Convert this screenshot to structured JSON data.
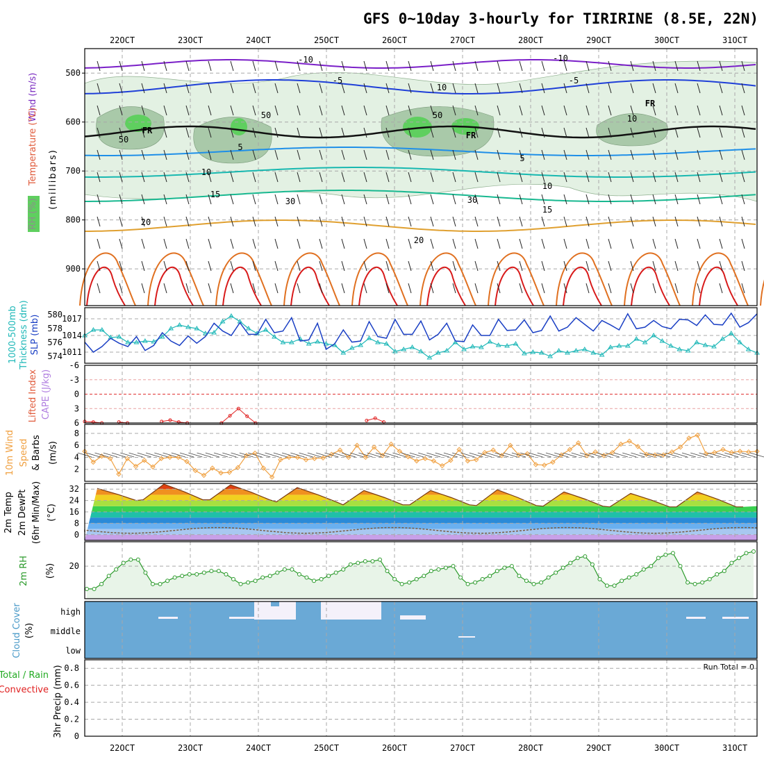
{
  "title": "GFS 0~10day 3-hourly for TIRIRINE (8.5E, 22N)",
  "x_labels": [
    "22OCT",
    "23OCT",
    "24OCT",
    "25OCT",
    "26OCT",
    "27OCT",
    "28OCT",
    "29OCT",
    "30OCT",
    "31OCT"
  ],
  "colors": {
    "grid": "#a8a8a8",
    "rh_fill_light": "#e3f1e3",
    "rh_fill_mid": "#a9c9a9",
    "rh_fill_high": "#5fcf5f",
    "cloud": "#6aa9d6",
    "slp": "#1a3fc4",
    "thickness": "#1fb8b8",
    "wind_speed": "#f0a040",
    "rh2m": "#2a9a2a",
    "precip_total": "#22aa22",
    "precip_conv": "#e02020"
  },
  "panels": {
    "upper_air": {
      "ylabels": [
        "Wind (m/s)",
        "Temperature (°C)",
        "RH (%)",
        "(millibars)"
      ],
      "ylim_mb": [
        450,
        975
      ],
      "yticks": [
        500,
        600,
        700,
        800,
        900
      ],
      "isotherm_labels": [
        "-10",
        "-5",
        "5",
        "10",
        "15",
        "20",
        "FR"
      ],
      "rh_labels": [
        "10",
        "30",
        "50"
      ]
    },
    "pressure": {
      "ylabels": [
        "1000-500mb",
        "Thickness (dm)",
        "SLP (mb)"
      ],
      "thickness_ticks": [
        574,
        576,
        578,
        580
      ],
      "slp_ticks": [
        1011,
        1014,
        1017
      ],
      "slp": [
        1012.8,
        1011.0,
        1012.0,
        1013.5,
        1012.6,
        1012.0,
        1013.8,
        1011.3,
        1012.2,
        1014.5,
        1013.0,
        1012.2,
        1013.9,
        1012.6,
        1013.8,
        1016.2,
        1014.8,
        1014.0,
        1016.3,
        1014.2,
        1014.2,
        1016.9,
        1014.5,
        1014.8,
        1017.2,
        1013.0,
        1013.2,
        1016.2,
        1011.5,
        1012.5,
        1015.0,
        1012.8,
        1013.0,
        1016.5,
        1013.8,
        1013.5,
        1016.9,
        1014.2,
        1014.2,
        1016.6,
        1013.2,
        1014.2,
        1016.2,
        1013.0,
        1012.9,
        1015.9,
        1014.0,
        1014.0,
        1016.9,
        1014.9,
        1015.0,
        1016.8,
        1014.5,
        1014.9,
        1017.5,
        1014.8,
        1015.5,
        1017.2,
        1016.0,
        1014.8,
        1016.7,
        1015.9,
        1015.0,
        1017.9,
        1015.2,
        1015.5,
        1016.7,
        1015.6,
        1015.2,
        1016.9,
        1016.8,
        1015.8,
        1017.7,
        1016.0,
        1015.9,
        1018.0,
        1015.5,
        1016.3,
        1017.9
      ],
      "thickness": [
        577.0,
        577.8,
        577.8,
        576.7,
        576.8,
        576.0,
        576.0,
        576.2,
        576.1,
        576.8,
        578.0,
        578.5,
        578.2,
        578.0,
        577.3,
        577.4,
        579.0,
        579.8,
        579.0,
        578.0,
        577.3,
        577.8,
        576.8,
        576.0,
        576.0,
        576.5,
        575.8,
        576.1,
        575.8,
        575.6,
        574.5,
        575.2,
        575.6,
        576.6,
        576.0,
        575.8,
        574.7,
        575.0,
        575.3,
        574.7,
        573.8,
        574.5,
        574.8,
        576.0,
        575.0,
        575.4,
        575.3,
        576.1,
        575.6,
        575.5,
        575.8,
        574.4,
        574.6,
        574.5,
        574.0,
        574.8,
        574.5,
        574.8,
        575.0,
        574.5,
        574.2,
        575.3,
        575.5,
        575.5,
        576.5,
        576.0,
        577.0,
        576.2,
        575.5,
        575.0,
        574.8,
        576.0,
        575.6,
        575.4,
        576.5,
        577.3,
        576.0,
        575.0,
        574.5
      ]
    },
    "stability": {
      "ylabels": [
        "Lifted Index",
        "CAPE (J/kg)"
      ],
      "li_ticks": [
        "-6",
        "-3",
        "0",
        "3",
        "6"
      ],
      "li_points": [
        [
          0,
          5.7
        ],
        [
          1,
          5.8
        ],
        [
          2,
          6
        ],
        [
          4,
          5.8
        ],
        [
          5,
          6
        ],
        [
          9,
          5.7
        ],
        [
          10,
          5.4
        ],
        [
          11,
          5.8
        ],
        [
          12,
          6
        ],
        [
          16,
          6
        ],
        [
          17,
          4.5
        ],
        [
          18,
          3.0
        ],
        [
          19,
          4.6
        ],
        [
          20,
          6
        ],
        [
          33,
          5.5
        ],
        [
          34,
          5.0
        ],
        [
          35,
          5.8
        ]
      ]
    },
    "wind10m": {
      "ylabels": [
        "10m Wind",
        "Speed",
        "& Barbs",
        "(m/s)"
      ],
      "yticks": [
        2,
        4,
        6,
        8
      ],
      "speed": [
        5.0,
        3.2,
        4.2,
        3.8,
        1.2,
        3.8,
        2.5,
        3.5,
        2.4,
        3.8,
        4.0,
        4.0,
        3.3,
        1.8,
        1.0,
        2.2,
        1.4,
        1.5,
        2.3,
        4.3,
        4.7,
        2.2,
        0.7,
        3.6,
        4.0,
        4.0,
        3.6,
        3.8,
        3.9,
        4.5,
        5.2,
        4.0,
        6.0,
        4.0,
        5.7,
        4.3,
        6.2,
        5.0,
        4.1,
        3.4,
        3.8,
        3.4,
        2.6,
        3.5,
        5.3,
        3.4,
        3.6,
        4.8,
        5.2,
        4.3,
        6.0,
        4.4,
        4.6,
        2.8,
        2.7,
        3.2,
        4.4,
        5.3,
        6.4,
        4.3,
        4.9,
        4.3,
        4.8,
        6.2,
        6.7,
        5.8,
        4.5,
        4.4,
        4.4,
        4.9,
        5.7,
        7.2,
        7.7,
        4.6,
        4.8,
        5.3,
        4.8,
        5.0,
        4.9,
        5.0
      ]
    },
    "temp2m": {
      "ylabels": [
        "2m Temp",
        "2m DewPt",
        "(6hr Min/Max)",
        "(°C)"
      ],
      "yticks": [
        0,
        8,
        16,
        24,
        32
      ],
      "daily_max": [
        32.5,
        35.5,
        35.0,
        33.0,
        31.0,
        31.0,
        31.5,
        30.0,
        29.0,
        30.0,
        29.5
      ],
      "daily_min": [
        24.0,
        24.5,
        24.5,
        23.0,
        21.0,
        21.0,
        20.5,
        20.0,
        19.5,
        19.5,
        19.5
      ],
      "dewpoint_range": [
        1,
        5
      ]
    },
    "rh2m": {
      "ylabels": [
        "2m RH",
        "(%)"
      ],
      "yticks": [
        20
      ],
      "values": [
        6,
        6,
        9,
        14,
        18,
        22,
        24,
        24,
        16,
        9,
        9,
        11,
        13,
        14,
        15,
        15,
        16,
        17,
        17,
        15,
        12,
        9,
        10,
        11,
        13,
        14,
        16,
        18,
        18,
        15,
        13,
        11,
        12,
        14,
        16,
        18,
        21,
        22,
        23,
        23,
        24,
        17,
        12,
        9,
        10,
        12,
        14,
        17,
        18,
        19,
        20,
        13,
        9,
        10,
        12,
        14,
        17,
        19,
        20,
        14,
        11,
        9,
        10,
        13,
        16,
        19,
        22,
        25,
        26,
        21,
        12,
        8,
        8,
        11,
        13,
        15,
        18,
        20,
        25,
        27,
        28,
        20,
        10,
        9,
        10,
        12,
        15,
        17,
        22,
        25,
        28,
        29
      ]
    },
    "cloud": {
      "ylabels": [
        "Cloud Cover",
        "(%)"
      ],
      "levels": [
        "high",
        "middle",
        "low"
      ]
    },
    "precip": {
      "ylabels": [
        "Total / Rain",
        "Convective",
        "3hr Precip (mm)"
      ],
      "yticks": [
        "0",
        "0.2",
        "0.4",
        "0.6",
        "0.8"
      ],
      "run_total_label": "Run Total = 0"
    }
  },
  "chart_data": {
    "type": "line",
    "title": "GFS 0~10day 3-hourly for TIRIRINE (8.5E, 22N)",
    "x_categories": [
      "22OCT",
      "23OCT",
      "24OCT",
      "25OCT",
      "26OCT",
      "27OCT",
      "28OCT",
      "29OCT",
      "30OCT",
      "31OCT"
    ],
    "run_total": "0",
    "precip_ylim": [
      0,
      0.9
    ],
    "slp_ylim": [
      1009,
      1019
    ],
    "thickness_ylim": [
      573,
      581
    ],
    "wind_speed_ylim": [
      0,
      9.5
    ],
    "temperature_ylim": [
      -4,
      36
    ],
    "rh2m_ylim": [
      0,
      35
    ],
    "grid": true
  }
}
